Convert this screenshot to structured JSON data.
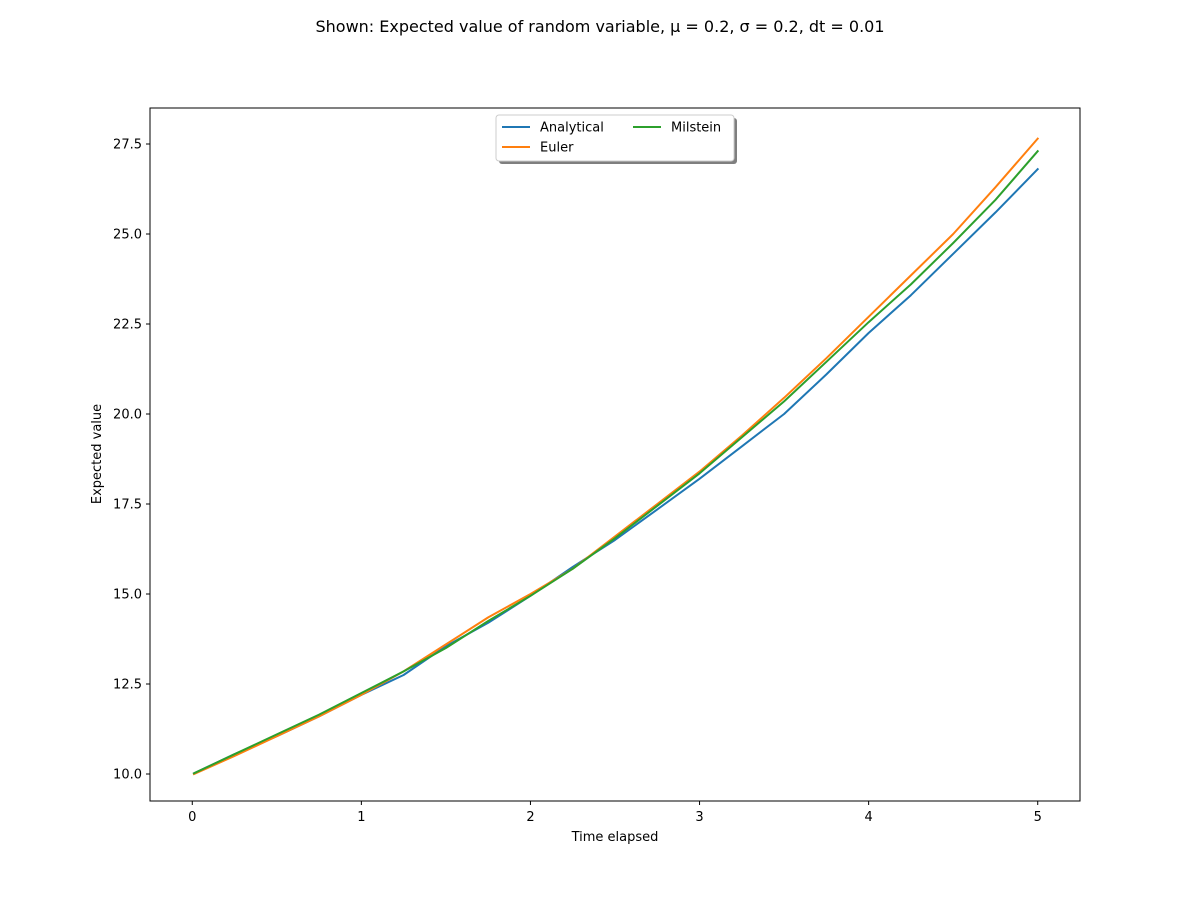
{
  "chart_data": {
    "type": "line",
    "title": "Shown: Expected value of random variable, μ = 0.2, σ = 0.2, dt = 0.01",
    "xlabel": "Time elapsed",
    "ylabel": "Expected value",
    "xlim": [
      -0.25,
      5.25
    ],
    "ylim": [
      9.25,
      28.5
    ],
    "xticks": [
      0,
      1,
      2,
      3,
      4,
      5
    ],
    "xtick_labels": [
      "0",
      "1",
      "2",
      "3",
      "4",
      "5"
    ],
    "yticks": [
      10.0,
      12.5,
      15.0,
      17.5,
      20.0,
      22.5,
      25.0,
      27.5
    ],
    "ytick_labels": [
      "10.0",
      "12.5",
      "15.0",
      "17.5",
      "20.0",
      "22.5",
      "25.0",
      "27.5"
    ],
    "grid": false,
    "legend": {
      "placement": "upper-center",
      "columns": 2,
      "shadow": true
    },
    "series": [
      {
        "name": "Analytical",
        "color": "#1f77b4",
        "x": [
          0.01,
          0.25,
          0.5,
          0.75,
          1.0,
          1.25,
          1.5,
          1.75,
          2.0,
          2.25,
          2.5,
          2.75,
          3.0,
          3.25,
          3.5,
          3.75,
          4.0,
          4.25,
          4.5,
          4.75,
          5.0
        ],
        "values": [
          10.02,
          10.55,
          11.05,
          11.6,
          12.2,
          12.75,
          13.55,
          14.2,
          14.95,
          15.75,
          16.5,
          17.35,
          18.2,
          19.1,
          20.0,
          21.1,
          22.25,
          23.3,
          24.45,
          25.6,
          26.8
        ]
      },
      {
        "name": "Euler",
        "color": "#ff7f0e",
        "x": [
          0.01,
          0.25,
          0.5,
          0.75,
          1.0,
          1.25,
          1.5,
          1.75,
          2.0,
          2.25,
          2.5,
          2.75,
          3.0,
          3.25,
          3.5,
          3.75,
          4.0,
          4.25,
          4.5,
          4.75,
          5.0
        ],
        "values": [
          10.0,
          10.5,
          11.05,
          11.6,
          12.2,
          12.85,
          13.6,
          14.35,
          15.0,
          15.7,
          16.6,
          17.5,
          18.4,
          19.4,
          20.45,
          21.55,
          22.7,
          23.85,
          25.0,
          26.3,
          27.65
        ]
      },
      {
        "name": "Milstein",
        "color": "#2ca02c",
        "x": [
          0.01,
          0.25,
          0.5,
          0.75,
          1.0,
          1.25,
          1.5,
          1.75,
          2.0,
          2.25,
          2.5,
          2.75,
          3.0,
          3.25,
          3.5,
          3.75,
          4.0,
          4.25,
          4.5,
          4.75,
          5.0
        ],
        "values": [
          10.02,
          10.55,
          11.1,
          11.65,
          12.25,
          12.85,
          13.5,
          14.25,
          14.95,
          15.7,
          16.55,
          17.45,
          18.35,
          19.35,
          20.35,
          21.45,
          22.55,
          23.6,
          24.75,
          25.95,
          27.3
        ]
      }
    ]
  }
}
